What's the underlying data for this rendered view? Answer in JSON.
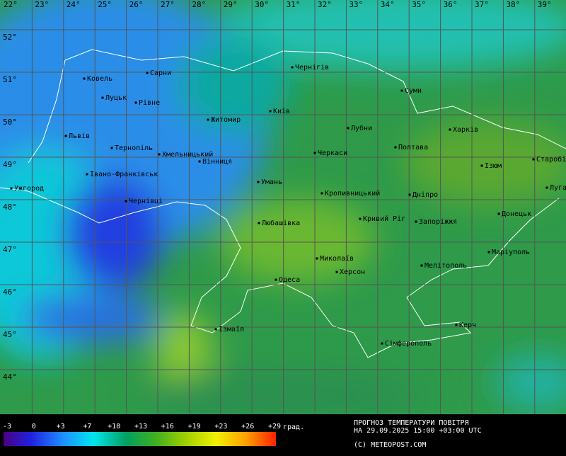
{
  "map": {
    "longitudes": [
      "22°",
      "23°",
      "24°",
      "25°",
      "26°",
      "27°",
      "28°",
      "29°",
      "30°",
      "31°",
      "32°",
      "33°",
      "34°",
      "35°",
      "36°",
      "37°",
      "38°",
      "39°"
    ],
    "latitudes": [
      "52°",
      "51°",
      "50°",
      "49°",
      "48°",
      "47°",
      "46°",
      "45°",
      "44°"
    ],
    "cities": [
      "Ковель",
      "Сарни",
      "Луцьк",
      "Рівне",
      "Чернігів",
      "Суми",
      "Житомир",
      "Київ",
      "Львів",
      "Лубни",
      "Харків",
      "Тернопіль",
      "Хмельницький",
      "Полтава",
      "Черкаси",
      "Вінниця",
      "Ізюм",
      "Старобільськ",
      "Івано-Франківськ",
      "Ужгород",
      "Умань",
      "Кропивницький",
      "Дніпро",
      "Луганськ",
      "Чернівці",
      "Кривий Ріг",
      "Запоріжжя",
      "Донецьк",
      "Любашівка",
      "Миколаїв",
      "Маріуполь",
      "Херсон",
      "Мелітополь",
      "Одеса",
      "Керч",
      "Ізмаїл",
      "Сімферополь"
    ]
  },
  "legend": {
    "labels": [
      "-3",
      "0",
      "+3",
      "+7",
      "+10",
      "+13",
      "+16",
      "+19",
      "+23",
      "+26",
      "+29"
    ],
    "unit": "град."
  },
  "footer": {
    "title": "ПРОГНОЗ ТЕМПЕРАТУРИ ПОВІТРЯ",
    "time": "НА 29.09.2025 15:00 +03:00 UTC",
    "credit": "(С) METEOPOST.COM"
  }
}
